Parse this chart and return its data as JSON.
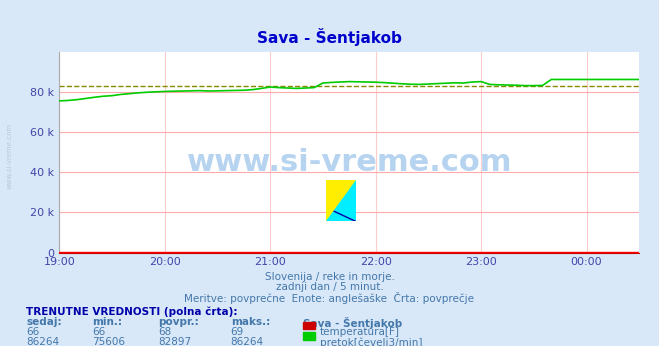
{
  "title": "Sava - Šentjakob",
  "bg_color": "#d8e8f8",
  "plot_bg_color": "#ffffff",
  "grid_color": "#ffaaaa",
  "grid_vcolor": "#ffcccc",
  "xlabel_color": "#4444aa",
  "ylabel_color": "#4444aa",
  "tick_color": "#4444aa",
  "x_ticks": [
    "19:00",
    "20:00",
    "21:00",
    "22:00",
    "23:00",
    "00:00"
  ],
  "x_tick_pos": [
    0,
    60,
    120,
    180,
    240,
    300
  ],
  "ylim": [
    0,
    100000
  ],
  "y_ticks": [
    0,
    20000,
    40000,
    60000,
    80000
  ],
  "y_tick_labels": [
    "0",
    "20 k",
    "40 k",
    "60 k",
    "80 k"
  ],
  "xlim": [
    0,
    330
  ],
  "temp_color": "#ff0000",
  "flow_color": "#00cc00",
  "avg_color": "#888800",
  "watermark_text": "www.si-vreme.com",
  "watermark_color": "#aaccee",
  "sub_text1": "Slovenija / reke in morje.",
  "sub_text2": "zadnji dan / 5 minut.",
  "sub_text3": "Meritve: povprečne  Enote: anglešaške  Črta: povprečje",
  "legend_title": "TRENUTNE VREDNOSTI (polna črta):",
  "legend_cols": [
    "sedaj:",
    "min.:",
    "povpr.:",
    "maks.:",
    "Sava - Šentjakob"
  ],
  "temp_row": [
    "66",
    "66",
    "68",
    "69",
    "temperatura[F]"
  ],
  "flow_row": [
    "86264",
    "75606",
    "82897",
    "86264",
    "pretok[čevelj3/min]"
  ],
  "avg_line_value": 82897,
  "temp_value": 66,
  "temp_max": 69,
  "flow_points_x": [
    0,
    5,
    10,
    15,
    20,
    25,
    30,
    35,
    40,
    45,
    50,
    55,
    60,
    65,
    70,
    75,
    80,
    85,
    90,
    95,
    100,
    105,
    110,
    115,
    120,
    125,
    130,
    135,
    140,
    145,
    150,
    155,
    160,
    165,
    170,
    175,
    180,
    185,
    190,
    195,
    200,
    205,
    210,
    215,
    220,
    225,
    230,
    235,
    240,
    245,
    250,
    255,
    260,
    265,
    270,
    275,
    280,
    285,
    290,
    295,
    300,
    305,
    310,
    315,
    320,
    325,
    330
  ],
  "flow_points_y": [
    75606,
    75800,
    76200,
    76800,
    77400,
    77900,
    78200,
    78800,
    79200,
    79600,
    79900,
    80100,
    80300,
    80400,
    80500,
    80600,
    80700,
    80500,
    80600,
    80700,
    80800,
    80900,
    81200,
    81800,
    82500,
    82200,
    82000,
    81800,
    82000,
    82200,
    84500,
    84800,
    85000,
    85200,
    85100,
    85000,
    84900,
    84700,
    84400,
    84100,
    83900,
    83800,
    84000,
    84200,
    84400,
    84600,
    84500,
    85000,
    85200,
    83800,
    83600,
    83500,
    83400,
    83200,
    83200,
    83300,
    86264,
    86264,
    86264,
    86264,
    86264,
    86264,
    86264,
    86264,
    86264,
    86264,
    86264
  ]
}
